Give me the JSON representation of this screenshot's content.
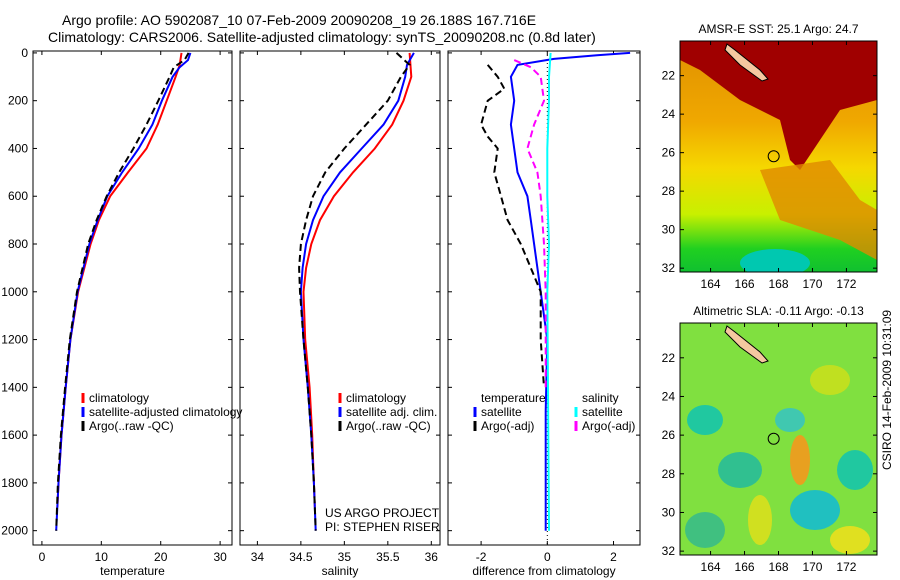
{
  "header": {
    "line1": "Argo profile: AO 5902087_10 07-Feb-2009 20090208_19 26.188S 167.716E",
    "line2": "Climatology: CARS2006. Satellite-adjusted climatology: synTS_20090208.nc (0.8d later)"
  },
  "side_text": "CSIRO 14-Feb-2009 10:31:09",
  "colors": {
    "climatology": "#ff0000",
    "satellite": "#0000ff",
    "argo": "#000000",
    "sal_satellite": "#00ffff",
    "sal_argo": "#ff00ff"
  },
  "chart_data": [
    {
      "type": "line",
      "xlabel": "temperature",
      "ylabel": "",
      "xlim": [
        -1.5,
        32
      ],
      "ylim": [
        2060,
        -8
      ],
      "xticks": [
        0,
        10,
        20,
        30
      ],
      "yticks": [
        0,
        200,
        400,
        600,
        800,
        1000,
        1200,
        1400,
        1600,
        1800,
        2000
      ],
      "legend": [
        "climatology",
        "satellite-adjusted climatology",
        "Argo(..raw -QC)"
      ],
      "series": [
        {
          "name": "climatology",
          "color": "#ff0000",
          "dash": false,
          "depth": [
            0,
            50,
            100,
            200,
            300,
            400,
            500,
            600,
            700,
            800,
            1000,
            1200,
            1400,
            1600,
            1800,
            1900
          ],
          "values": [
            23.5,
            23.2,
            22.5,
            21,
            19.5,
            17.6,
            14.5,
            11.5,
            9.6,
            8.2,
            6.1,
            4.8,
            4,
            3.3,
            2.8,
            2.6
          ]
        },
        {
          "name": "satellite-adjusted climatology",
          "color": "#0000ff",
          "dash": false,
          "depth": [
            0,
            30,
            60,
            100,
            200,
            300,
            400,
            500,
            600,
            700,
            800,
            1000,
            1200,
            1400,
            1600,
            1800,
            2000
          ],
          "values": [
            25,
            24.6,
            23.2,
            22,
            20.2,
            18.6,
            16.3,
            13.5,
            11,
            9.4,
            8,
            6,
            4.8,
            4,
            3.3,
            2.8,
            2.4
          ]
        },
        {
          "name": "Argo(..raw -QC)",
          "color": "#000000",
          "dash": true,
          "depth": [
            0,
            30,
            60,
            100,
            200,
            300,
            400,
            500,
            600,
            700,
            800,
            1000,
            1200,
            1400,
            1600,
            1800,
            2000
          ],
          "values": [
            24.7,
            24,
            22.2,
            21.5,
            19.6,
            17.6,
            15.4,
            13,
            10.9,
            9.2,
            7.8,
            5.9,
            4.7,
            3.9,
            3.2,
            2.7,
            2.4
          ]
        }
      ]
    },
    {
      "type": "line",
      "xlabel": "salinity",
      "ylabel": "",
      "xlim": [
        33.8,
        36.1
      ],
      "ylim": [
        2060,
        -8
      ],
      "xticks": [
        34,
        34.5,
        35,
        35.5,
        36
      ],
      "yticks": [
        0,
        200,
        400,
        600,
        800,
        1000,
        1200,
        1400,
        1600,
        1800,
        2000
      ],
      "legend": [
        "climatology",
        "satellite adj. clim.",
        "Argo(..raw -QC)"
      ],
      "annotation": [
        "US ARGO PROJECT",
        "PI: STEPHEN RISER"
      ],
      "series": [
        {
          "name": "climatology",
          "color": "#ff0000",
          "dash": false,
          "depth": [
            0,
            100,
            200,
            300,
            400,
            500,
            600,
            700,
            800,
            900,
            1000,
            1200,
            1400,
            1600,
            1800,
            1900
          ],
          "values": [
            35.75,
            35.77,
            35.68,
            35.55,
            35.35,
            35.1,
            34.88,
            34.72,
            34.62,
            34.56,
            34.53,
            34.55,
            34.6,
            34.63,
            34.65,
            34.66
          ]
        },
        {
          "name": "satellite adj. clim.",
          "color": "#0000ff",
          "dash": false,
          "depth": [
            0,
            50,
            100,
            200,
            300,
            400,
            500,
            600,
            700,
            800,
            900,
            1000,
            1200,
            1400,
            1600,
            1800,
            2000
          ],
          "values": [
            35.8,
            35.72,
            35.7,
            35.62,
            35.45,
            35.2,
            34.95,
            34.76,
            34.64,
            34.56,
            34.52,
            34.5,
            34.53,
            34.58,
            34.62,
            34.65,
            34.67
          ]
        },
        {
          "name": "Argo(..raw -QC)",
          "color": "#000000",
          "dash": true,
          "depth": [
            0,
            50,
            100,
            200,
            300,
            400,
            500,
            600,
            700,
            800,
            900,
            1000,
            1200,
            1400,
            1600,
            1800,
            2000
          ],
          "values": [
            35.6,
            35.75,
            35.65,
            35.5,
            35.25,
            35.0,
            34.78,
            34.64,
            34.56,
            34.5,
            34.48,
            34.49,
            34.53,
            34.58,
            34.62,
            34.65,
            34.67
          ]
        }
      ]
    },
    {
      "type": "line",
      "xlabel": "difference from climatology",
      "ylabel": "",
      "xlim": [
        -3.0,
        2.8
      ],
      "ylim": [
        2060,
        -8
      ],
      "xticks": [
        -2,
        0,
        2
      ],
      "yticks": [
        0,
        200,
        400,
        600,
        800,
        1000,
        1200,
        1400,
        1600,
        1800,
        2000
      ],
      "legend_headers": [
        "temperature",
        "salinity"
      ],
      "legend": [
        "satellite",
        "Argo(-adj)",
        "satellite",
        "Argo(-adj)"
      ],
      "series": [
        {
          "name": "temperature satellite",
          "color": "#0000ff",
          "dash": false,
          "depth": [
            0,
            10,
            25,
            50,
            100,
            200,
            300,
            400,
            500,
            600,
            700,
            800,
            1000,
            1100,
            1200,
            1500,
            2000
          ],
          "values": [
            2.5,
            1.5,
            0.2,
            -0.9,
            -1.1,
            -1.0,
            -1.1,
            -1.0,
            -0.9,
            -0.6,
            -0.5,
            -0.4,
            -0.2,
            -0.1,
            0,
            -0.05,
            -0.05
          ]
        },
        {
          "name": "temperature Argo(-adj)",
          "color": "#000000",
          "dash": true,
          "depth": [
            50,
            100,
            150,
            200,
            300,
            350,
            400,
            500,
            600,
            700,
            800,
            900,
            1000,
            1200,
            1400
          ],
          "values": [
            -1.8,
            -1.5,
            -1.3,
            -1.8,
            -2.0,
            -1.8,
            -1.5,
            -1.6,
            -1.4,
            -1.2,
            -0.8,
            -0.5,
            -0.2,
            -0.2,
            -0.1
          ]
        },
        {
          "name": "salinity satellite",
          "color": "#00ffff",
          "dash": false,
          "depth": [
            0,
            100,
            200,
            400,
            600,
            800,
            1000,
            1400,
            2000
          ],
          "values": [
            0.1,
            0.05,
            0.05,
            0.0,
            0.0,
            0.05,
            0.0,
            0.02,
            0.05
          ]
        },
        {
          "name": "salinity Argo(-adj)",
          "color": "#ff00ff",
          "dash": true,
          "depth": [
            30,
            60,
            100,
            200,
            300,
            400,
            500,
            600,
            800,
            1000,
            1400
          ],
          "values": [
            -1.0,
            -0.5,
            -0.2,
            -0.1,
            -0.4,
            -0.6,
            -0.3,
            -0.2,
            -0.1,
            -0.05,
            -0.05
          ]
        }
      ]
    },
    {
      "type": "heatmap",
      "title": "AMSR-E SST: 25.1 Argo: 24.7",
      "xlim": [
        162.2,
        173.8
      ],
      "ylim": [
        32.2,
        20.2
      ],
      "xticks": [
        164,
        166,
        168,
        170,
        172
      ],
      "yticks": [
        22,
        24,
        26,
        28,
        30,
        32
      ],
      "marker": [
        167.716,
        26.188
      ]
    },
    {
      "type": "heatmap",
      "title": "Altimetric SLA: -0.11 Argo: -0.13",
      "xlim": [
        162.2,
        173.8
      ],
      "ylim": [
        32.2,
        20.2
      ],
      "xticks": [
        164,
        166,
        168,
        170,
        172
      ],
      "yticks": [
        22,
        24,
        26,
        28,
        30,
        32
      ],
      "marker": [
        167.716,
        26.188
      ]
    }
  ]
}
